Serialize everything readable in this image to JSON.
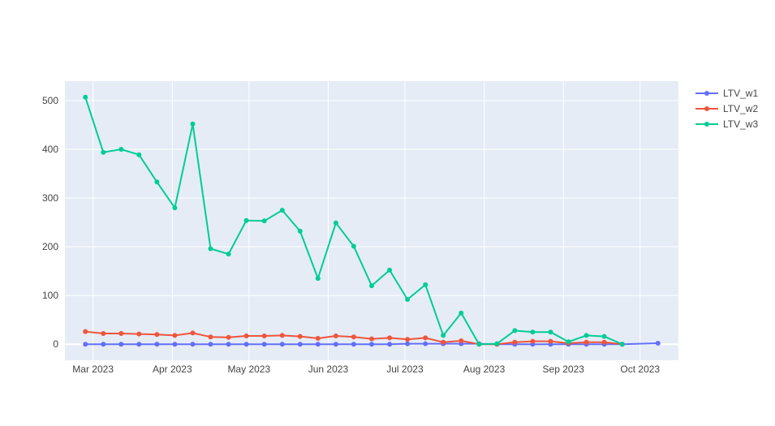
{
  "chart_data": {
    "type": "line",
    "x_type": "date",
    "x": [
      "2023-02-26",
      "2023-03-05",
      "2023-03-12",
      "2023-03-19",
      "2023-03-26",
      "2023-04-02",
      "2023-04-09",
      "2023-04-16",
      "2023-04-23",
      "2023-04-30",
      "2023-05-07",
      "2023-05-14",
      "2023-05-21",
      "2023-05-28",
      "2023-06-04",
      "2023-06-11",
      "2023-06-18",
      "2023-06-25",
      "2023-07-02",
      "2023-07-09",
      "2023-07-16",
      "2023-07-23",
      "2023-07-30",
      "2023-08-06",
      "2023-08-13",
      "2023-08-20",
      "2023-08-27",
      "2023-09-03",
      "2023-09-10",
      "2023-09-17",
      "2023-09-24",
      "2023-10-08"
    ],
    "series": [
      {
        "name": "LTV_w1",
        "color": "#636efa",
        "values": [
          0,
          0,
          0,
          0,
          0,
          0,
          0,
          0,
          0,
          0,
          0,
          0,
          0,
          0,
          0,
          0,
          0,
          0,
          1,
          1,
          1,
          1,
          1,
          0,
          0,
          0,
          0,
          0,
          0,
          0,
          0,
          2
        ]
      },
      {
        "name": "LTV_w2",
        "color": "#ef553b",
        "values": [
          26,
          22,
          22,
          21,
          20,
          18,
          23,
          15,
          14,
          17,
          17,
          18,
          16,
          12,
          17,
          15,
          11,
          13,
          10,
          13,
          4,
          7,
          0,
          0,
          4,
          6,
          6,
          2,
          4,
          4,
          0,
          null
        ]
      },
      {
        "name": "LTV_w3",
        "color": "#00cc96",
        "values": [
          507,
          394,
          400,
          389,
          333,
          280,
          452,
          196,
          185,
          254,
          253,
          275,
          232,
          135,
          249,
          201,
          120,
          152,
          92,
          122,
          18,
          64,
          0,
          1,
          28,
          25,
          25,
          5,
          18,
          16,
          0,
          null
        ]
      }
    ],
    "xticks": [
      {
        "date": "2023-03-01",
        "label": "Mar 2023"
      },
      {
        "date": "2023-04-01",
        "label": "Apr 2023"
      },
      {
        "date": "2023-05-01",
        "label": "May 2023"
      },
      {
        "date": "2023-06-01",
        "label": "Jun 2023"
      },
      {
        "date": "2023-07-01",
        "label": "Jul 2023"
      },
      {
        "date": "2023-08-01",
        "label": "Aug 2023"
      },
      {
        "date": "2023-09-01",
        "label": "Sep 2023"
      },
      {
        "date": "2023-10-01",
        "label": "Oct 2023"
      }
    ],
    "yticks": [
      0,
      100,
      200,
      300,
      400,
      500
    ],
    "xlim": [
      "2023-02-18",
      "2023-10-16"
    ],
    "ylim": [
      -33,
      540
    ],
    "title": "",
    "xlabel": "",
    "ylabel": "",
    "grid": true,
    "legend_position": "top-right",
    "plot_background": "#e5ecf6",
    "grid_color": "#ffffff"
  }
}
